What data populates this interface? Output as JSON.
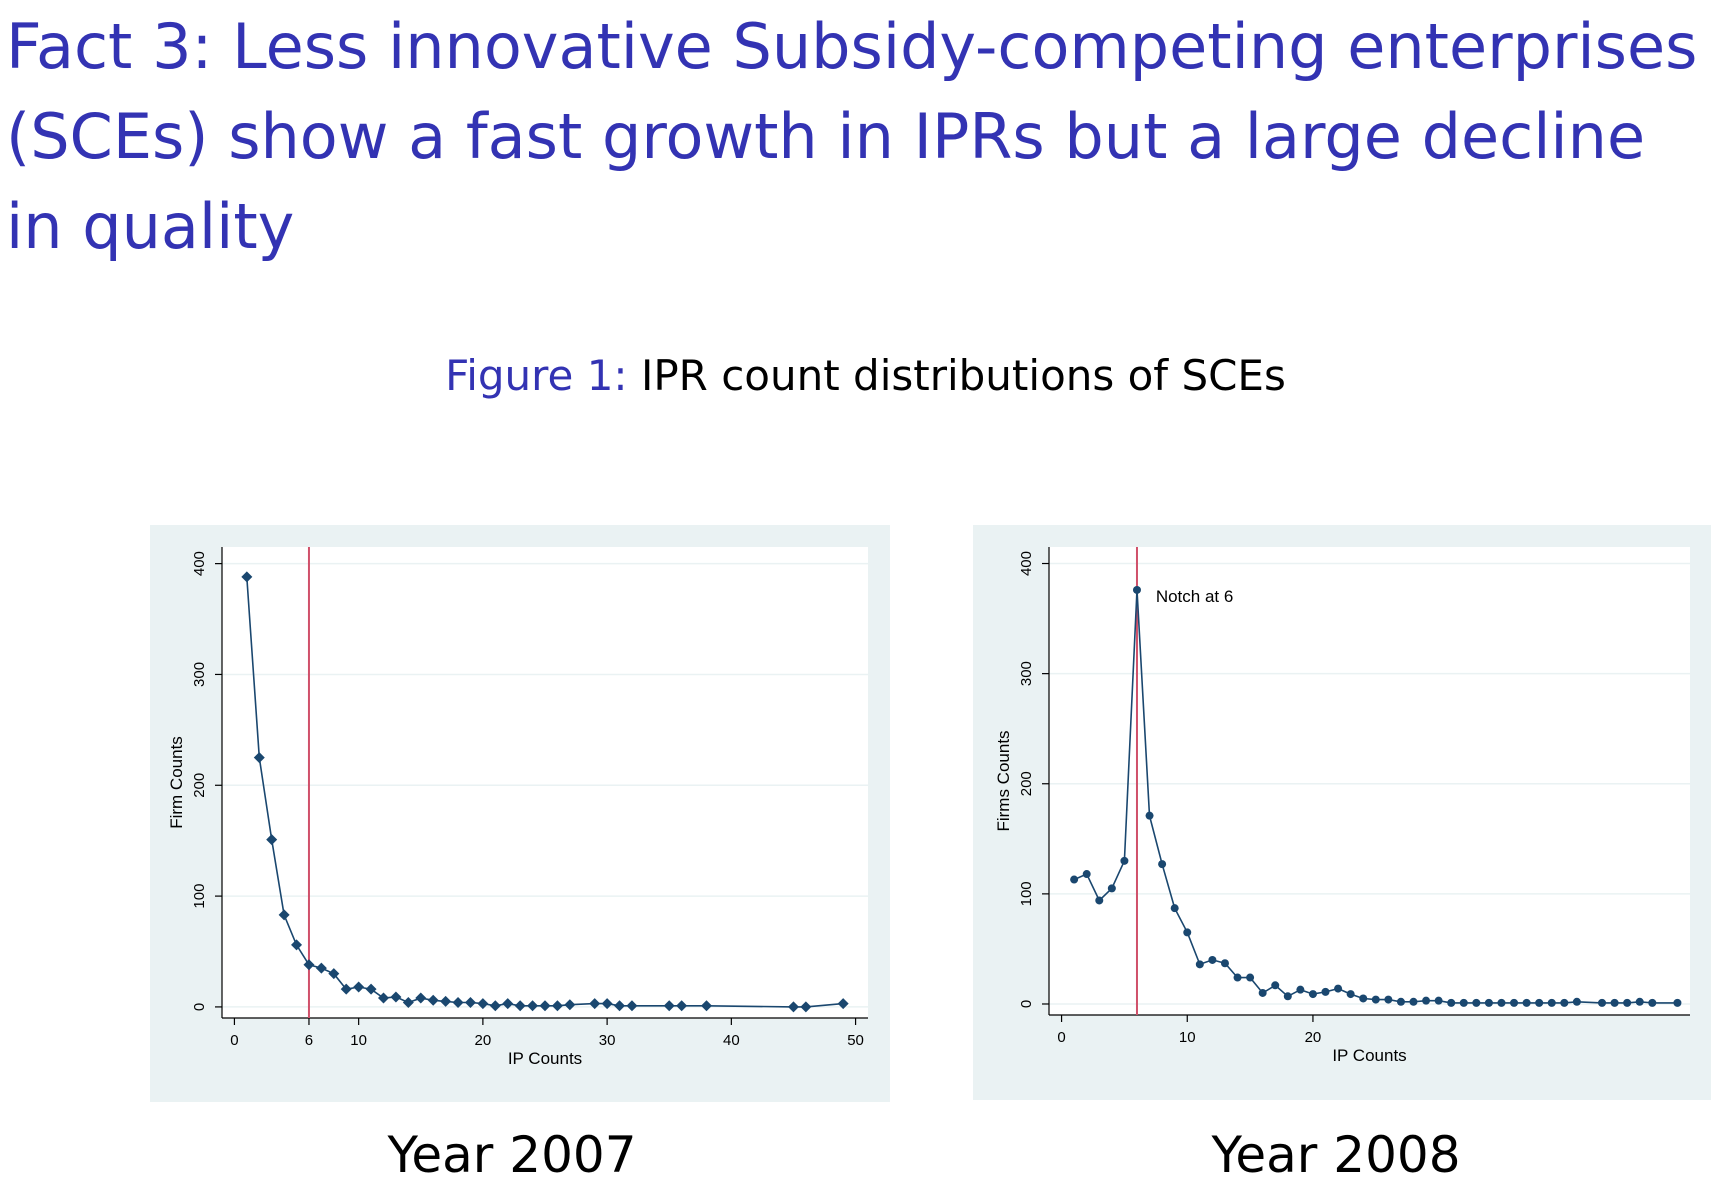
{
  "slide": {
    "title": "Fact 3: Less innovative Subsidy-competing enterprises (SCEs) show a fast growth in IPRs but a large decline in quality"
  },
  "figure": {
    "caption_label": "Figure 1:",
    "caption_text": " IPR count distributions of SCEs"
  },
  "colors": {
    "title_blue": "#3333b3",
    "series": "#1a476f",
    "reference_line": "#d0506a",
    "panel_background": "#eaf2f3"
  },
  "chart_data": [
    {
      "type": "line",
      "panel_label": "Year 2007",
      "marker": "diamond",
      "xlabel": "IP Counts",
      "ylabel": "Firm Counts",
      "xlim": [
        -1,
        51
      ],
      "ylim": [
        -10,
        415
      ],
      "xticks": [
        0,
        6,
        10,
        20,
        30,
        40,
        50
      ],
      "yticks": [
        0,
        100,
        200,
        300,
        400
      ],
      "reference_x": 6,
      "grid": true,
      "series": [
        {
          "x": [
            1,
            2,
            3,
            4,
            5,
            6,
            7,
            8,
            9,
            10,
            11,
            12,
            13,
            14,
            15,
            16,
            17,
            18,
            19,
            20,
            21,
            22,
            23,
            24,
            25,
            26,
            27,
            29,
            30,
            31,
            32,
            35,
            36,
            38,
            45,
            46,
            49
          ],
          "y": [
            388,
            225,
            151,
            83,
            56,
            38,
            35,
            30,
            16,
            18,
            16,
            8,
            9,
            4,
            8,
            6,
            5,
            4,
            4,
            3,
            1,
            3,
            1,
            1,
            1,
            1,
            2,
            3,
            3,
            1,
            1,
            1,
            1,
            1,
            0,
            0,
            3
          ]
        }
      ]
    },
    {
      "type": "line",
      "panel_label": "Year 2008",
      "marker": "circle",
      "xlabel": "IP Counts",
      "ylabel": "Firms Counts",
      "xlim": [
        -1,
        50
      ],
      "ylim": [
        -10,
        415
      ],
      "xticks": [
        0,
        10,
        20
      ],
      "yticks": [
        0,
        100,
        200,
        300,
        400
      ],
      "reference_x": 6,
      "grid": true,
      "annotation": {
        "text": "Notch at 6",
        "x": 7.5,
        "y": 365
      },
      "series": [
        {
          "x": [
            1,
            2,
            3,
            4,
            5,
            6,
            7,
            8,
            9,
            10,
            11,
            12,
            13,
            14,
            15,
            16,
            17,
            18,
            19,
            20,
            21,
            22,
            23,
            24,
            25,
            26,
            27,
            28,
            29,
            30,
            31,
            32,
            33,
            34,
            35,
            36,
            37,
            38,
            39,
            40,
            41,
            43,
            44,
            45,
            46,
            47,
            49
          ],
          "y": [
            113,
            118,
            94,
            105,
            130,
            376,
            171,
            127,
            87,
            65,
            36,
            40,
            37,
            24,
            24,
            10,
            17,
            7,
            13,
            9,
            11,
            14,
            9,
            5,
            4,
            4,
            2,
            2,
            3,
            3,
            1,
            1,
            1,
            1,
            1,
            1,
            1,
            1,
            1,
            1,
            2,
            1,
            1,
            1,
            2,
            1,
            1
          ]
        }
      ]
    }
  ]
}
